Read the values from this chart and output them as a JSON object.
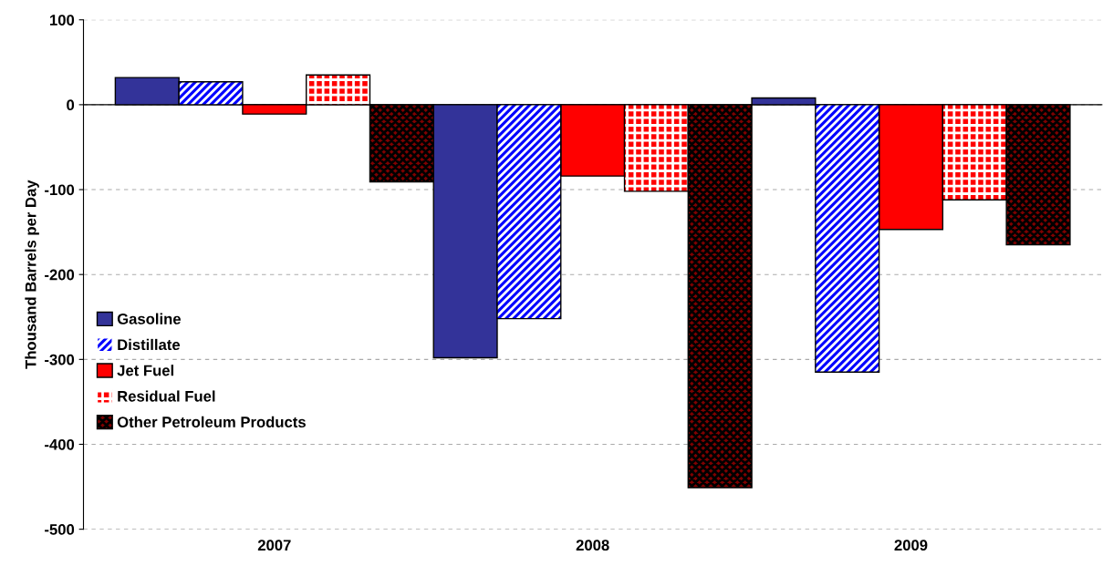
{
  "chart_data": {
    "type": "bar",
    "ylabel": "Thousand Barrels per Day",
    "categories": [
      "2007",
      "2008",
      "2009"
    ],
    "series": [
      {
        "name": "Gasoline",
        "color": "#333399",
        "values": [
          32,
          -298,
          8
        ]
      },
      {
        "name": "Distillate",
        "color": "#0000ff",
        "values": [
          27,
          -252,
          -315
        ]
      },
      {
        "name": "Jet Fuel",
        "color": "#ff0000",
        "values": [
          -11,
          -84,
          -147
        ]
      },
      {
        "name": "Residual Fuel",
        "color": "#ff0000",
        "values": [
          35,
          -102,
          -112
        ]
      },
      {
        "name": "Other Petroleum Products",
        "color": "#800000",
        "values": [
          -91,
          -451,
          -165
        ]
      }
    ],
    "ylim": [
      -500,
      100
    ],
    "yticks": [
      -500,
      -400,
      -300,
      -200,
      -100,
      0,
      100
    ],
    "grid": "y",
    "legend": "center left"
  }
}
